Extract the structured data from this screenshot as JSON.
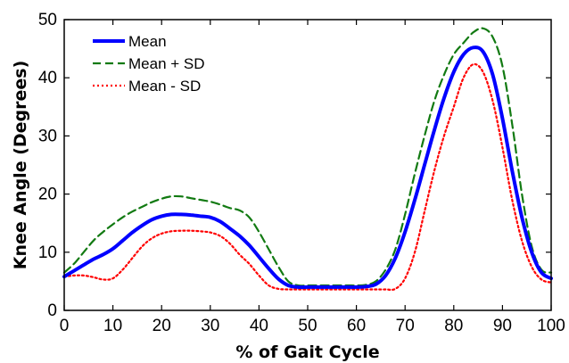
{
  "chart_data": {
    "type": "line",
    "xlabel": "% of Gait Cycle",
    "ylabel": "Knee Angle (Degrees)",
    "xlim": [
      0,
      100
    ],
    "ylim": [
      0,
      50
    ],
    "x_ticks": [
      "0",
      "10",
      "20",
      "30",
      "40",
      "50",
      "60",
      "70",
      "80",
      "90",
      "100"
    ],
    "y_ticks": [
      "0",
      "10",
      "20",
      "30",
      "40",
      "50"
    ],
    "grid": false,
    "legend_position": "top-left",
    "series": [
      {
        "name": "Mean",
        "color": "#0000ff",
        "style": "solid",
        "x": [
          0,
          2,
          4,
          6,
          8,
          10,
          12,
          14,
          16,
          18,
          20,
          22,
          24,
          26,
          28,
          30,
          32,
          34,
          36,
          38,
          40,
          42,
          44,
          46,
          48,
          50,
          52,
          54,
          56,
          58,
          60,
          62,
          64,
          66,
          68,
          70,
          72,
          74,
          76,
          78,
          80,
          82,
          84,
          86,
          88,
          90,
          92,
          94,
          96,
          98,
          100
        ],
        "y": [
          5.8,
          6.8,
          7.8,
          8.8,
          9.6,
          10.6,
          12.0,
          13.4,
          14.6,
          15.6,
          16.2,
          16.5,
          16.5,
          16.4,
          16.2,
          16.0,
          15.3,
          14.1,
          12.8,
          11.2,
          9.2,
          7.2,
          5.4,
          4.3,
          4.0,
          4.0,
          4.0,
          4.0,
          4.0,
          4.0,
          4.0,
          4.1,
          4.5,
          6.0,
          9.0,
          13.5,
          19.0,
          25.0,
          31.0,
          36.5,
          41.0,
          44.0,
          45.2,
          44.5,
          40.5,
          33.0,
          24.0,
          16.0,
          10.0,
          6.5,
          5.5
        ]
      },
      {
        "name": "Mean + SD",
        "color": "#127a12",
        "style": "dashed",
        "x": [
          0,
          2,
          4,
          6,
          8,
          10,
          12,
          14,
          16,
          18,
          20,
          22,
          24,
          26,
          28,
          30,
          32,
          34,
          36,
          38,
          40,
          42,
          44,
          46,
          48,
          50,
          52,
          54,
          56,
          58,
          60,
          62,
          64,
          66,
          68,
          70,
          72,
          74,
          76,
          78,
          80,
          82,
          84,
          86,
          88,
          90,
          92,
          94,
          96,
          98,
          100
        ],
        "y": [
          6.5,
          8.0,
          10.0,
          12.0,
          13.5,
          14.8,
          16.0,
          17.0,
          17.8,
          18.6,
          19.2,
          19.6,
          19.6,
          19.3,
          19.0,
          18.7,
          18.2,
          17.6,
          17.2,
          16.0,
          13.5,
          10.5,
          7.5,
          5.0,
          4.3,
          4.3,
          4.3,
          4.3,
          4.3,
          4.3,
          4.3,
          4.4,
          5.0,
          7.0,
          10.5,
          16.5,
          23.5,
          30.0,
          36.0,
          40.5,
          44.0,
          46.0,
          47.8,
          48.5,
          47.0,
          42.0,
          32.0,
          20.0,
          11.0,
          7.0,
          6.5
        ]
      },
      {
        "name": "Mean - SD",
        "color": "#ff0000",
        "style": "dotted",
        "x": [
          0,
          2,
          4,
          6,
          8,
          10,
          12,
          14,
          16,
          18,
          20,
          22,
          24,
          26,
          28,
          30,
          32,
          34,
          36,
          38,
          40,
          42,
          44,
          46,
          48,
          50,
          52,
          54,
          56,
          58,
          60,
          62,
          64,
          66,
          68,
          70,
          72,
          74,
          76,
          78,
          80,
          82,
          84,
          86,
          88,
          90,
          92,
          94,
          96,
          98,
          100
        ],
        "y": [
          5.8,
          6.0,
          6.0,
          5.7,
          5.3,
          5.5,
          7.0,
          9.0,
          11.0,
          12.4,
          13.2,
          13.6,
          13.7,
          13.7,
          13.6,
          13.4,
          12.8,
          11.5,
          9.6,
          8.0,
          6.0,
          4.3,
          3.7,
          3.6,
          3.6,
          3.6,
          3.6,
          3.6,
          3.6,
          3.6,
          3.6,
          3.6,
          3.6,
          3.6,
          3.7,
          5.5,
          10.0,
          17.0,
          24.0,
          30.0,
          35.0,
          40.0,
          42.3,
          41.0,
          36.0,
          28.0,
          19.0,
          12.0,
          7.5,
          5.3,
          4.8
        ]
      }
    ]
  }
}
